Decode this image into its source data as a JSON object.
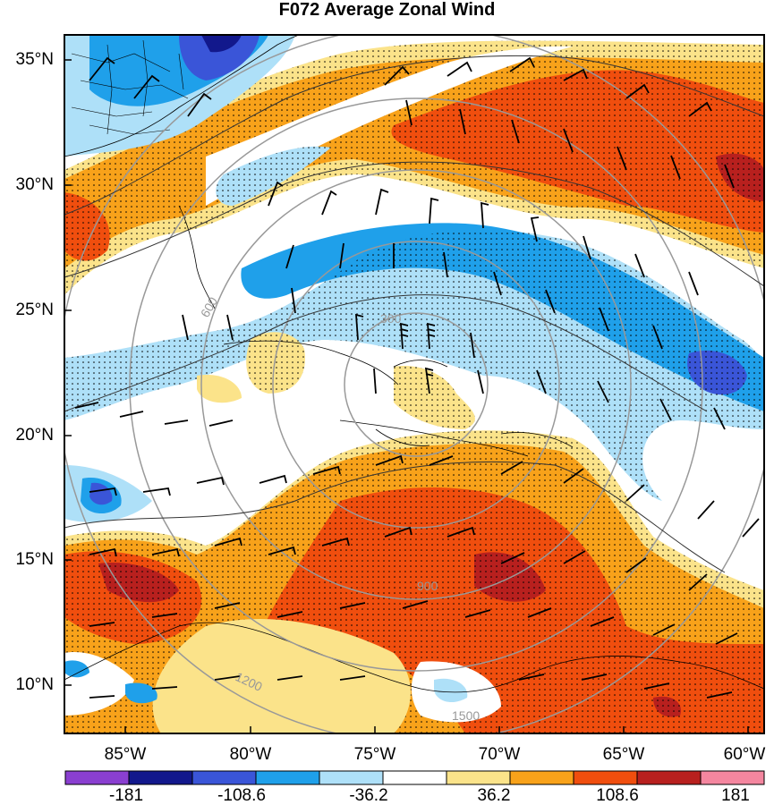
{
  "title": "F072 Average Zonal Wind",
  "map": {
    "lat_labels": [
      "35°N",
      "30°N",
      "25°N",
      "20°N",
      "15°N",
      "10°N"
    ],
    "lon_labels": [
      "85°W",
      "80°W",
      "75°W",
      "70°W",
      "65°W",
      "60°W"
    ],
    "ring_labels": [
      "300",
      "600",
      "900",
      "1200",
      "1500"
    ]
  },
  "colorbar": {
    "tick_labels": [
      "-181",
      "-108.6",
      "-36.2",
      "36.2",
      "108.6",
      "181"
    ],
    "colors": [
      "#8a3fd0",
      "#12188c",
      "#3a55d8",
      "#1fa0ea",
      "#aee0f8",
      "#ffffff",
      "#fbe38a",
      "#f8a21a",
      "#f04e0e",
      "#b8201e",
      "#f4869f"
    ]
  }
}
